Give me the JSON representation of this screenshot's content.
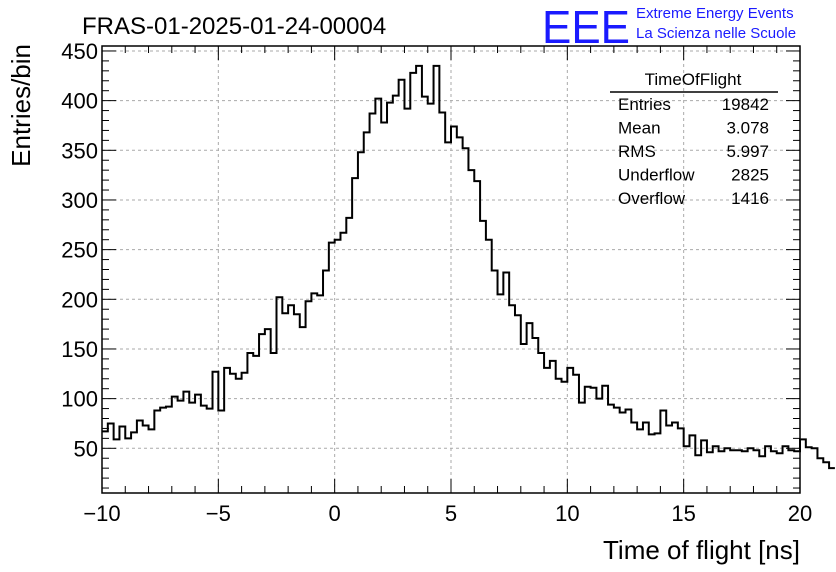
{
  "chart_data": {
    "type": "histogram",
    "title": "FRAS-01-2025-01-24-00004",
    "xlabel": "Time of flight [ns]",
    "ylabel": "Entries/bin",
    "xlim": [
      -10,
      20
    ],
    "ylim": [
      5,
      455
    ],
    "x_ticks": [
      -10,
      -5,
      0,
      5,
      10,
      15,
      20
    ],
    "x_tick_labels": [
      "−10",
      "−5",
      "0",
      "5",
      "10",
      "15",
      "20"
    ],
    "y_ticks": [
      50,
      100,
      150,
      200,
      250,
      300,
      350,
      400,
      450
    ],
    "grid": true,
    "bin_width": 0.25,
    "bin_start": -10,
    "values": [
      67,
      75,
      59,
      72,
      60,
      66,
      78,
      73,
      69,
      88,
      91,
      92,
      102,
      98,
      107,
      96,
      104,
      93,
      90,
      127,
      88,
      131,
      125,
      120,
      126,
      146,
      143,
      165,
      170,
      146,
      202,
      186,
      194,
      185,
      172,
      198,
      206,
      204,
      229,
      257,
      260,
      267,
      282,
      322,
      348,
      368,
      387,
      402,
      378,
      398,
      405,
      421,
      392,
      428,
      435,
      404,
      397,
      435,
      388,
      358,
      374,
      363,
      352,
      330,
      319,
      279,
      260,
      229,
      205,
      227,
      194,
      184,
      155,
      176,
      161,
      146,
      131,
      138,
      120,
      117,
      131,
      124,
      96,
      112,
      111,
      100,
      113,
      94,
      91,
      86,
      89,
      76,
      69,
      76,
      64,
      65,
      88,
      73,
      76,
      70,
      52,
      63,
      43,
      58,
      46,
      52,
      47,
      50,
      48,
      48,
      47,
      50,
      48,
      42,
      52,
      47,
      45,
      52,
      48,
      47,
      59,
      51,
      50,
      40,
      36,
      30
    ],
    "stats": {
      "name": "TimeOfFlight",
      "rows": [
        {
          "label": "Entries",
          "value": "19842"
        },
        {
          "label": "Mean",
          "value": "3.078"
        },
        {
          "label": "RMS",
          "value": "5.997"
        },
        {
          "label": "Underflow",
          "value": "2825"
        },
        {
          "label": "Overflow",
          "value": "1416"
        }
      ]
    }
  },
  "logo": {
    "mark": "EEE",
    "line1": "Extreme Energy Events",
    "line2": "La Scienza nelle Scuole"
  },
  "colors": {
    "logo": "#1a1aff",
    "line": "#000000",
    "grid": "#aaaaaa"
  }
}
